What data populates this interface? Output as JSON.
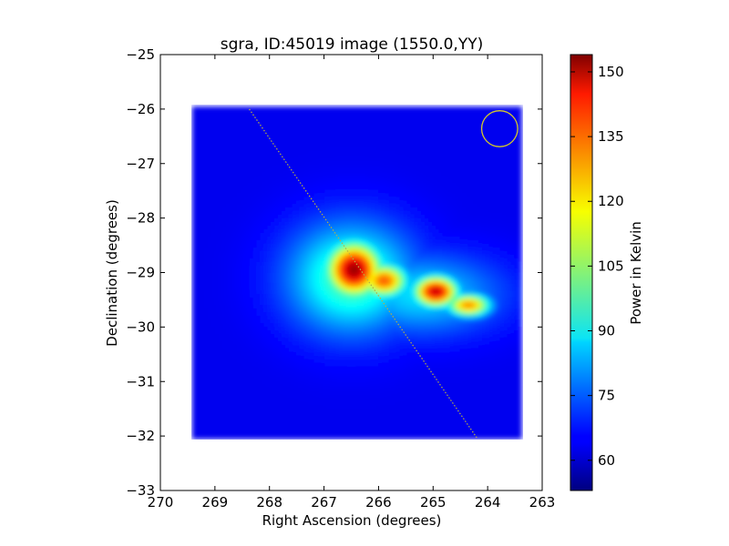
{
  "chart_data": {
    "type": "heatmap",
    "title": "sgra, ID:45019 image (1550.0,YY)",
    "xlabel": "Right Ascension (degrees)",
    "ylabel": "Declination (degrees)",
    "xlim": [
      270,
      263
    ],
    "ylim": [
      -33,
      -25
    ],
    "x_ticks": [
      270,
      269,
      268,
      267,
      266,
      265,
      264,
      263
    ],
    "y_ticks": [
      -25,
      -26,
      -27,
      -28,
      -29,
      -30,
      -31,
      -32,
      -33
    ],
    "x_tick_labels": [
      "270",
      "269",
      "268",
      "267",
      "266",
      "265",
      "264",
      "263"
    ],
    "y_tick_labels": [
      "−25",
      "−26",
      "−27",
      "−28",
      "−29",
      "−30",
      "−31",
      "−32",
      "−33"
    ],
    "image_extent": {
      "ra": [
        269.42,
        263.38
      ],
      "dec": [
        -32.05,
        -25.95
      ]
    },
    "background_level": 64,
    "hotspots": [
      {
        "ra": 266.45,
        "dec": -28.95,
        "value": 152,
        "sigma_ra": 0.35,
        "sigma_dec": 0.35
      },
      {
        "ra": 265.9,
        "dec": -29.15,
        "value": 133,
        "sigma_ra": 0.3,
        "sigma_dec": 0.22
      },
      {
        "ra": 264.95,
        "dec": -29.35,
        "value": 148,
        "sigma_ra": 0.28,
        "sigma_dec": 0.2
      },
      {
        "ra": 264.35,
        "dec": -29.6,
        "value": 128,
        "sigma_ra": 0.28,
        "sigma_dec": 0.15
      },
      {
        "ra": 266.5,
        "dec": -29.1,
        "value": 100,
        "sigma_ra": 0.8,
        "sigma_dec": 0.7
      },
      {
        "ra": 265.2,
        "dec": -29.4,
        "value": 88,
        "sigma_ra": 1.0,
        "sigma_dec": 0.5
      }
    ],
    "galactic_plane_line": {
      "start": {
        "ra": 268.37,
        "dec": -26.0
      },
      "end": {
        "ra": 264.2,
        "dec": -32.03
      },
      "color": "#b8b040",
      "style": "dotted"
    },
    "beam_circle": {
      "ra": 263.78,
      "dec": -26.36,
      "radius_deg": 0.33,
      "color": "#d4c82a"
    },
    "colorbar": {
      "label": "Power in Kelvin",
      "range": [
        53,
        154
      ],
      "ticks": [
        60,
        75,
        90,
        105,
        120,
        135,
        150
      ],
      "tick_labels": [
        "60",
        "75",
        "90",
        "105",
        "120",
        "135",
        "150"
      ],
      "colormap": "jet"
    }
  }
}
